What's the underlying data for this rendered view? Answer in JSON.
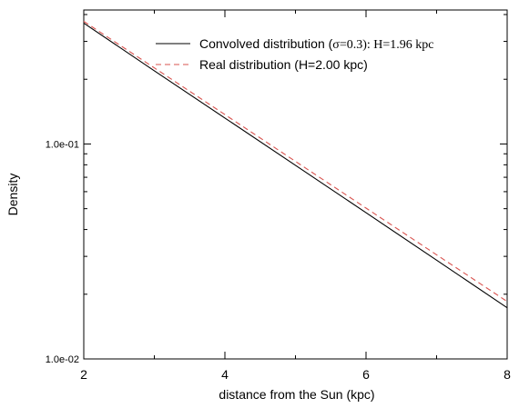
{
  "chart_data": {
    "type": "line",
    "xlabel": "distance from the Sun (kpc)",
    "ylabel": "Density",
    "xlim": [
      2,
      8
    ],
    "ylim": [
      0.01,
      0.42
    ],
    "yscale": "log",
    "xticks": [
      2,
      4,
      6,
      8
    ],
    "xtick_labels": [
      "2",
      "4",
      "6",
      "8"
    ],
    "yticks_major": [
      0.1,
      0.01
    ],
    "ytick_labels": [
      "1.0e-01",
      "1.0e-02"
    ],
    "grid": false,
    "legend_position": "top-right",
    "legend": {
      "convolved": {
        "prefix": "Convolved distribution (",
        "serif_part": "σ=0.3): H=1.96 kpc"
      },
      "real": "Real distribution (H=2.00 kpc)"
    },
    "series": [
      {
        "key": "convolved",
        "style": "solid",
        "color": "#000000",
        "x": [
          2,
          3,
          4,
          5,
          6,
          7,
          8
        ],
        "y": [
          0.365,
          0.219,
          0.132,
          0.0796,
          0.0479,
          0.0288,
          0.0173
        ]
      },
      {
        "key": "real",
        "style": "dashed",
        "color": "#d9534f",
        "x": [
          2,
          3,
          4,
          5,
          6,
          7,
          8
        ],
        "y": [
          0.372,
          0.226,
          0.137,
          0.083,
          0.0503,
          0.0305,
          0.0185
        ]
      }
    ]
  }
}
